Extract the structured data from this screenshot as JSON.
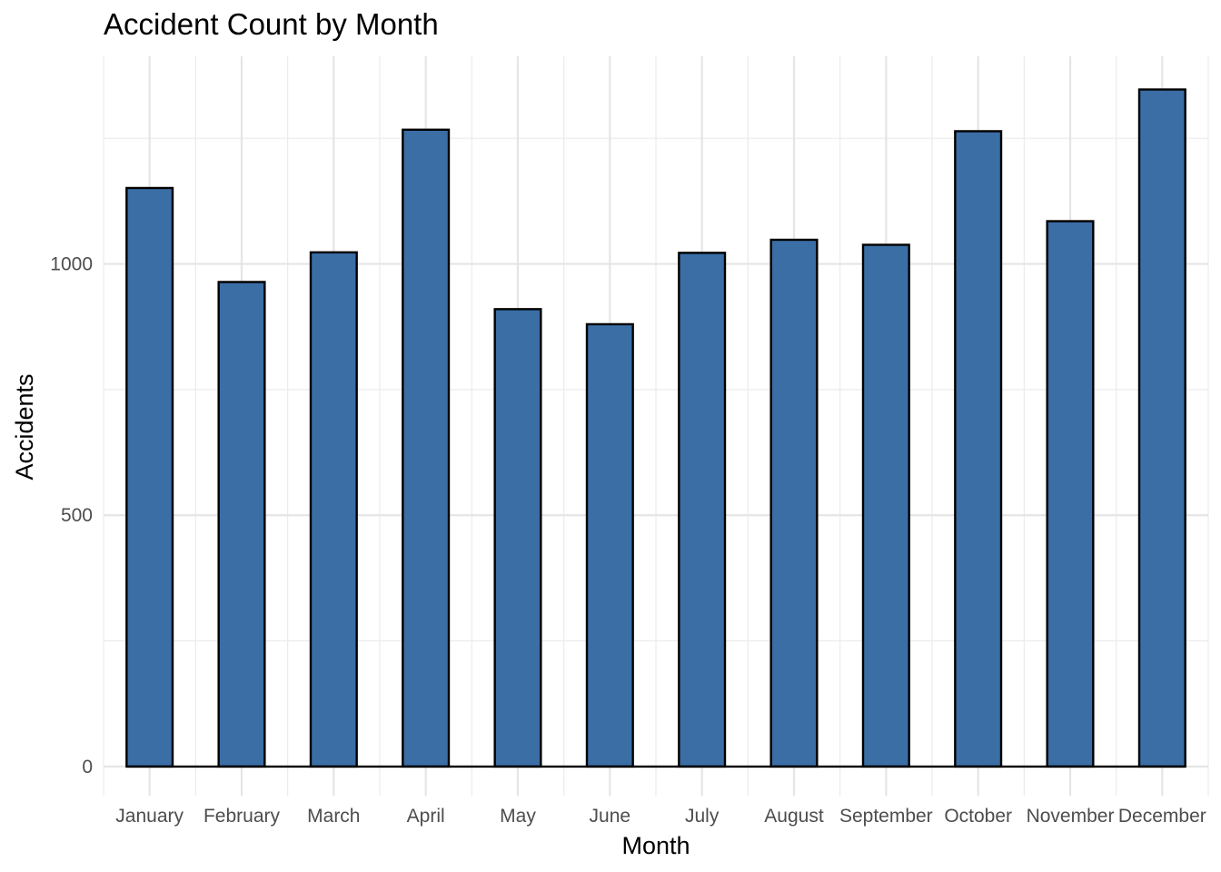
{
  "chart_data": {
    "type": "bar",
    "title": "Accident Count by Month",
    "xlabel": "Month",
    "ylabel": "Accidents",
    "categories": [
      "January",
      "February",
      "March",
      "April",
      "May",
      "June",
      "July",
      "August",
      "September",
      "October",
      "November",
      "December"
    ],
    "values": [
      1151,
      964,
      1023,
      1267,
      910,
      880,
      1022,
      1048,
      1038,
      1264,
      1085,
      1347
    ],
    "ylim": [
      -58,
      1413
    ],
    "yticks": [
      0,
      500,
      1000
    ],
    "yticks_labels": [
      "0",
      "500",
      "1000"
    ],
    "bar_fill": "#3a6ea5",
    "bar_stroke": "#000000",
    "grid": true,
    "legend": "none"
  }
}
